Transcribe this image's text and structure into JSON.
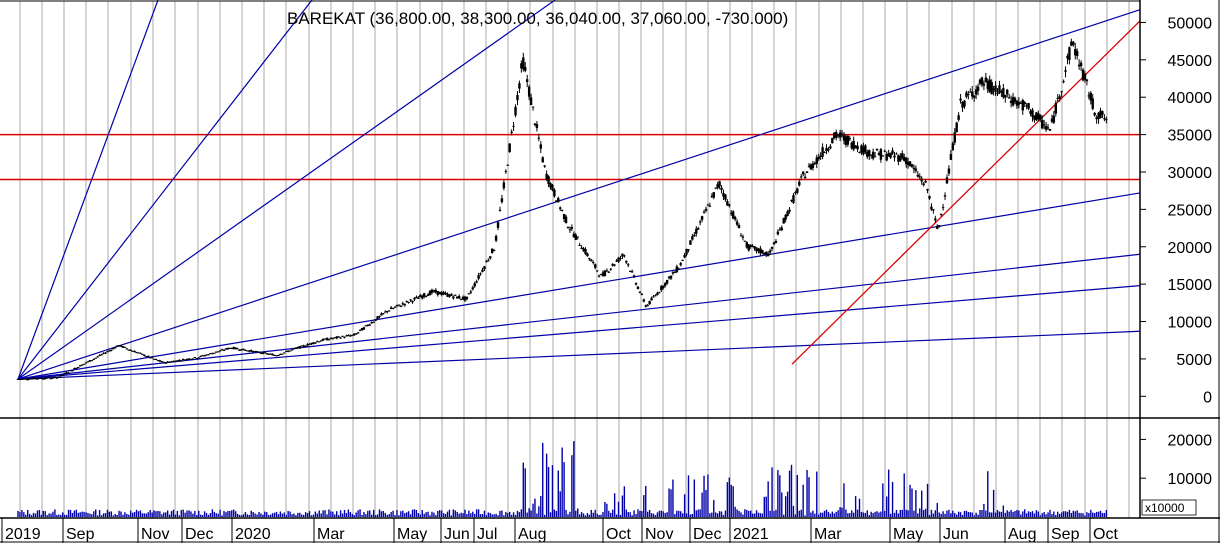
{
  "chart_data": {
    "type": "candlestick",
    "title": "BAREKAT (36,800.00, 38,300.00, 36,040.00, 37,060.00, -730.000)",
    "price_axis": {
      "range": [
        -2500,
        53000
      ],
      "ticks": [
        50000,
        45000,
        40000,
        35000,
        30000,
        25000,
        20000,
        15000,
        10000,
        5000,
        0
      ]
    },
    "volume_axis": {
      "range": [
        0,
        25000
      ],
      "ticks": [
        20000,
        10000
      ],
      "unit_label": "x10000"
    },
    "x_axis": {
      "labels": [
        "2019",
        "Sep",
        "Nov",
        "Dec",
        "2020",
        "Mar",
        "May",
        "Jun",
        "Jul",
        "Aug",
        "Oct",
        "Nov",
        "Dec",
        "2021",
        "Mar",
        "May",
        "Jun",
        "Aug",
        "Sep",
        "Oct"
      ]
    },
    "horizontal_lines": [
      35000,
      29000
    ],
    "gann_fan_origin_price": 2300,
    "gann_fan_end_prices": [
      8700,
      14800,
      19000,
      27200,
      51700
    ],
    "trendline": {
      "start_price": 4300,
      "end_price": 50200,
      "color": "#d80000"
    },
    "price_path": [
      [
        0,
        2300
      ],
      [
        0.035,
        2500
      ],
      [
        0.07,
        5200
      ],
      [
        0.09,
        6800
      ],
      [
        0.13,
        4500
      ],
      [
        0.16,
        5200
      ],
      [
        0.19,
        6500
      ],
      [
        0.23,
        5500
      ],
      [
        0.27,
        7500
      ],
      [
        0.3,
        8200
      ],
      [
        0.33,
        11500
      ],
      [
        0.37,
        14000
      ],
      [
        0.4,
        13000
      ],
      [
        0.425,
        20000
      ],
      [
        0.45,
        45000
      ],
      [
        0.47,
        30000
      ],
      [
        0.49,
        23000
      ],
      [
        0.52,
        16000
      ],
      [
        0.54,
        19000
      ],
      [
        0.56,
        12000
      ],
      [
        0.59,
        17500
      ],
      [
        0.625,
        28500
      ],
      [
        0.65,
        20000
      ],
      [
        0.67,
        19000
      ],
      [
        0.7,
        29500
      ],
      [
        0.73,
        35000
      ],
      [
        0.76,
        32500
      ],
      [
        0.79,
        32000
      ],
      [
        0.81,
        28000
      ],
      [
        0.82,
        22000
      ],
      [
        0.84,
        39000
      ],
      [
        0.86,
        42000
      ],
      [
        0.9,
        38500
      ],
      [
        0.92,
        35500
      ],
      [
        0.94,
        47500
      ],
      [
        0.96,
        38000
      ],
      [
        0.97,
        37060
      ]
    ],
    "volume_bursts": [
      [
        0.45,
        0.5,
        20000
      ],
      [
        0.52,
        0.56,
        9000
      ],
      [
        0.58,
        0.65,
        11000
      ],
      [
        0.66,
        0.72,
        14000
      ],
      [
        0.73,
        0.76,
        11000
      ],
      [
        0.77,
        0.82,
        13000
      ],
      [
        0.86,
        0.88,
        13000
      ]
    ],
    "colors": {
      "fan": "#0000a8",
      "horizontal": "#d80000",
      "candle": "#000000",
      "volume": "#0000a8",
      "grid": "#a8a8a8"
    }
  }
}
